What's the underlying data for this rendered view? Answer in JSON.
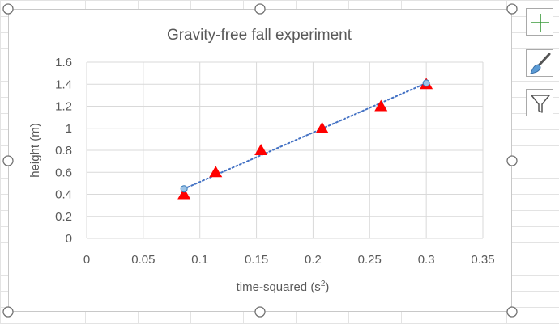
{
  "chart_data": {
    "type": "scatter",
    "title": "Gravity-free fall experiment",
    "xlabel": "time-squared (s",
    "xlabel_superscript": "2",
    "xlabel_suffix": ")",
    "ylabel": "height (m)",
    "xlim": [
      0,
      0.35
    ],
    "ylim": [
      0,
      1.6
    ],
    "x_ticks": [
      "0",
      "0.05",
      "0.1",
      "0.15",
      "0.2",
      "0.25",
      "0.3",
      "0.35"
    ],
    "y_ticks": [
      "0",
      "0.2",
      "0.4",
      "0.6",
      "0.8",
      "1",
      "1.2",
      "1.4",
      "1.6"
    ],
    "grid": true,
    "legend": "none",
    "series": [
      {
        "marker": "triangle",
        "color": "#ff0000",
        "points": [
          {
            "x": 0.086,
            "y": 0.4
          },
          {
            "x": 0.114,
            "y": 0.6
          },
          {
            "x": 0.154,
            "y": 0.8
          },
          {
            "x": 0.208,
            "y": 1.0
          },
          {
            "x": 0.26,
            "y": 1.2
          },
          {
            "x": 0.3,
            "y": 1.4
          }
        ]
      },
      {
        "marker": "circle",
        "color": "#9dc3e6",
        "points": [
          {
            "x": 0.086,
            "y": 0.45
          },
          {
            "x": 0.3,
            "y": 1.41
          }
        ]
      }
    ],
    "trendline": {
      "style": "dotted",
      "color": "#4472c4",
      "from": {
        "x": 0.086,
        "y": 0.45
      },
      "to": {
        "x": 0.3,
        "y": 1.41
      }
    }
  },
  "side_buttons": {
    "elements": "chart-elements-plus-icon",
    "styles": "chart-styles-brush-icon",
    "filters": "chart-filters-funnel-icon"
  }
}
